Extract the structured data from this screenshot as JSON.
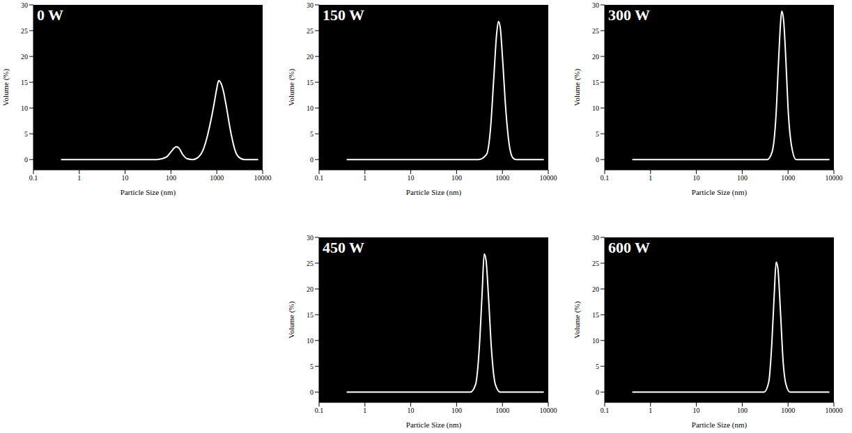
{
  "chart_data": [
    {
      "type": "line",
      "title": "0 W",
      "x_label": "Particle Size (nm)",
      "y_label": "Volume (%)",
      "log": "x",
      "color": "#ffffff",
      "xlim": [
        0.1,
        10000
      ],
      "xticks": [
        0.1,
        1,
        10,
        100,
        1000,
        10000
      ],
      "ylim": [
        -2,
        30
      ],
      "yticks": [
        0,
        5,
        10,
        15,
        20,
        25,
        30
      ],
      "x": [
        0.4,
        50,
        80,
        100,
        120,
        130,
        150,
        180,
        220,
        300,
        400,
        500,
        600,
        700,
        800,
        900,
        1000,
        1100,
        1200,
        1400,
        1600,
        2000,
        2500,
        3000,
        4000,
        8000
      ],
      "values": [
        0,
        0,
        0.5,
        1.5,
        2.3,
        2.5,
        2.2,
        1.0,
        0.2,
        0,
        0.5,
        1.8,
        4,
        6.5,
        9,
        11.5,
        13.8,
        15.3,
        15,
        13.2,
        10.5,
        5.5,
        1.8,
        0.5,
        0,
        0
      ]
    },
    {
      "type": "line",
      "title": "150 W",
      "x_label": "Particle Size (nm)",
      "y_label": "Volume (%)",
      "log": "x",
      "color": "#ffffff",
      "xlim": [
        0.1,
        10000
      ],
      "xticks": [
        0.1,
        1,
        10,
        100,
        1000,
        10000
      ],
      "ylim": [
        -2,
        30
      ],
      "yticks": [
        0,
        5,
        10,
        15,
        20,
        25,
        30
      ],
      "x": [
        0.4,
        300,
        450,
        550,
        650,
        750,
        820,
        900,
        1000,
        1200,
        1400,
        1700,
        2000,
        8000
      ],
      "values": [
        0,
        0,
        1,
        6,
        16,
        24.5,
        26.8,
        25.5,
        20,
        9,
        3,
        0.3,
        0,
        0
      ]
    },
    {
      "type": "line",
      "title": "300 W",
      "x_label": "Particle Size (nm)",
      "y_label": "Volume (%)",
      "log": "x",
      "color": "#ffffff",
      "xlim": [
        0.1,
        10000
      ],
      "xticks": [
        0.1,
        1,
        10,
        100,
        1000,
        10000
      ],
      "ylim": [
        -2,
        30
      ],
      "yticks": [
        0,
        5,
        10,
        15,
        20,
        25,
        30
      ],
      "x": [
        0.4,
        350,
        450,
        550,
        620,
        700,
        730,
        800,
        900,
        1000,
        1200,
        1500,
        8000
      ],
      "values": [
        0,
        0,
        1.5,
        9,
        19,
        27.5,
        28.8,
        27,
        19,
        10,
        2.5,
        0,
        0
      ]
    },
    {
      "type": "line",
      "title": "450 W",
      "x_label": "Particle Size (nm)",
      "y_label": "Volume (%)",
      "log": "x",
      "color": "#ffffff",
      "xlim": [
        0.1,
        10000
      ],
      "xticks": [
        0.1,
        1,
        10,
        100,
        1000,
        10000
      ],
      "ylim": [
        -2,
        30
      ],
      "yticks": [
        0,
        5,
        10,
        15,
        20,
        25,
        30
      ],
      "x": [
        0.4,
        200,
        260,
        310,
        360,
        400,
        440,
        500,
        580,
        700,
        900,
        8000
      ],
      "values": [
        0,
        0,
        1.5,
        8,
        19,
        26.8,
        25.5,
        18,
        8,
        1.5,
        0,
        0
      ]
    },
    {
      "type": "line",
      "title": "600 W",
      "x_label": "Particle Size (nm)",
      "y_label": "Volume (%)",
      "log": "x",
      "color": "#ffffff",
      "xlim": [
        0.1,
        10000
      ],
      "xticks": [
        0.1,
        1,
        10,
        100,
        1000,
        10000
      ],
      "ylim": [
        -2,
        30
      ],
      "yticks": [
        0,
        5,
        10,
        15,
        20,
        25,
        30
      ],
      "x": [
        0.4,
        300,
        380,
        440,
        500,
        550,
        600,
        680,
        780,
        900,
        1100,
        8000
      ],
      "values": [
        0,
        0,
        2,
        9,
        19,
        25.2,
        24,
        16,
        6,
        1.5,
        0,
        0
      ]
    }
  ]
}
